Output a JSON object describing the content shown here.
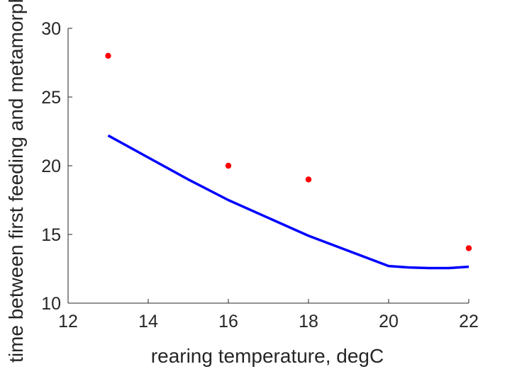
{
  "chart_data": {
    "type": "scatter",
    "title": "",
    "xlabel": "rearing temperature, degC",
    "ylabel": "time between first feeding and metamorphosis, d",
    "xlim": [
      12,
      22
    ],
    "ylim": [
      10,
      30
    ],
    "x_ticks": [
      12,
      14,
      16,
      18,
      20,
      22
    ],
    "y_ticks": [
      10,
      15,
      20,
      25,
      30
    ],
    "grid": false,
    "colors": {
      "observed": "#ff0000",
      "model": "#0000ff",
      "axis": "#262626"
    },
    "series": [
      {
        "kind": "points",
        "x": [
          13,
          16,
          18,
          22
        ],
        "y": [
          28,
          20,
          19,
          14
        ]
      },
      {
        "kind": "line",
        "x": [
          13,
          14,
          15,
          16,
          17,
          18,
          19,
          20,
          20.5,
          21,
          21.5,
          22
        ],
        "y": [
          22.2,
          20.6,
          19.0,
          17.5,
          16.2,
          14.9,
          13.8,
          12.7,
          12.6,
          12.55,
          12.55,
          12.65
        ]
      }
    ]
  }
}
